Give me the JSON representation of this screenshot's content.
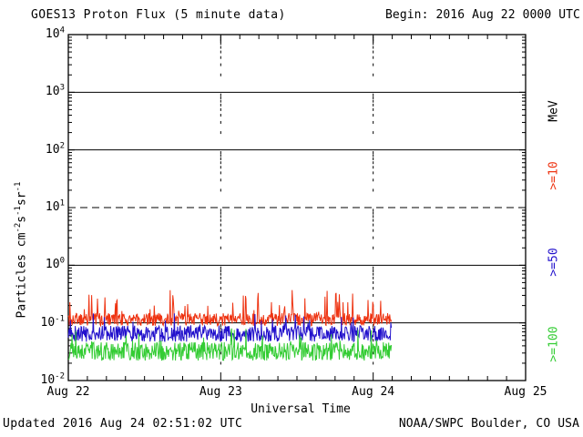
{
  "header": {
    "title": "GOES13 Proton Flux (5 minute data)",
    "begin_label": "Begin: 2016 Aug 22 0000 UTC"
  },
  "footer": {
    "updated": "Updated 2016 Aug 24 02:51:02 UTC",
    "source": "NOAA/SWPC Boulder, CO USA"
  },
  "chart_data": {
    "type": "line",
    "title": "GOES13 Proton Flux (5 minute data)",
    "begin": "2016 Aug 22 0000 UTC",
    "updated": "2016 Aug 24 02:51:02 UTC",
    "xlabel": "Universal Time",
    "ylabel_segments": [
      {
        "text": "Particles cm"
      },
      {
        "sup": "-2"
      },
      {
        "text": "s"
      },
      {
        "sup": "-1"
      },
      {
        "text": "sr"
      },
      {
        "sup": "-1"
      }
    ],
    "unit_label": "MeV",
    "x_ticks": [
      "Aug 22",
      "Aug 23",
      "Aug 24",
      "Aug 25"
    ],
    "x_range_days": 3,
    "minor_tick_hours": 3,
    "y_tick_exponents": [
      4,
      3,
      2,
      1,
      0,
      -1,
      -2
    ],
    "ylim": [
      0.01,
      10000
    ],
    "y_scale": "log",
    "grid": {
      "solid_decade_lines": [
        1000,
        100,
        1,
        0.1
      ],
      "dashed_decade_lines": [
        10
      ],
      "vertical_dashed_at_days": [
        1,
        2
      ]
    },
    "sample_minutes": 5,
    "data_end_day_fraction": 2.119,
    "axis_color": "#000000",
    "background_color": "#ffffff",
    "legend_position": "right-rotated",
    "series": [
      {
        "name": ">=10",
        "unit": "MeV",
        "color": "#ee3311",
        "baseline_flux": 0.115,
        "flux_range": [
          0.082,
          0.46
        ],
        "jitter_decades": 0.11,
        "spike_prob": 0.13,
        "spike_amp_decades": 0.45
      },
      {
        "name": ">=50",
        "unit": "MeV",
        "color": "#2211cc",
        "baseline_flux": 0.065,
        "flux_range": [
          0.042,
          0.15
        ],
        "jitter_decades": 0.14,
        "spike_prob": 0.09,
        "spike_amp_decades": 0.28
      },
      {
        "name": ">=100",
        "unit": "MeV",
        "color": "#33cc33",
        "baseline_flux": 0.032,
        "flux_range": [
          0.02,
          0.08
        ],
        "jitter_decades": 0.16,
        "spike_prob": 0.07,
        "spike_amp_decades": 0.32
      }
    ]
  }
}
